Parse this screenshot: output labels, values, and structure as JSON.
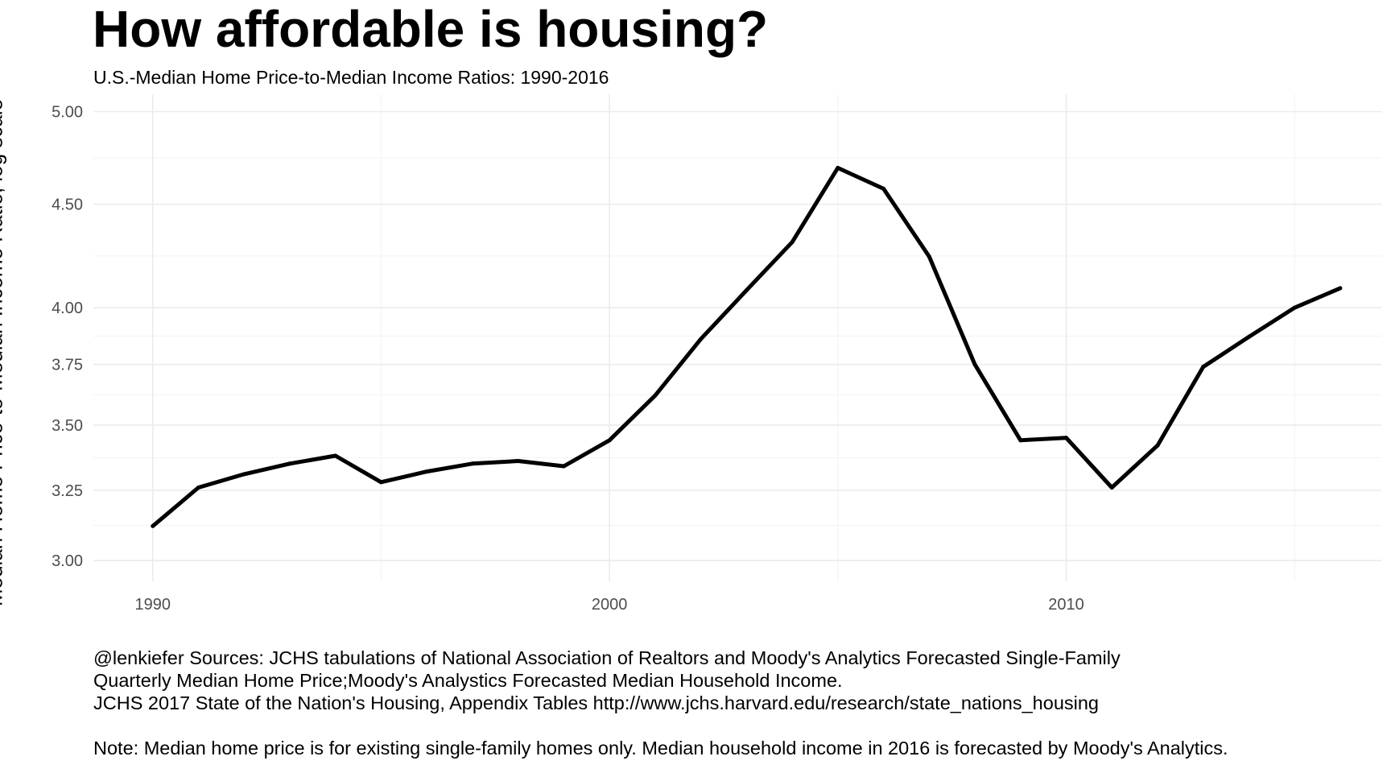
{
  "chart_data": {
    "type": "line",
    "title": "How affordable is housing?",
    "subtitle": "U.S.-Median Home Price-to-Median Income Ratios: 1990-2016",
    "xlabel": "",
    "ylabel": "Median Home Price-to-Median Income Ratio, log scale",
    "y_scale": "log",
    "grid": true,
    "xlim": [
      1988.7,
      2016.9
    ],
    "ylim": [
      2.93,
      5.1
    ],
    "x_ticks": [
      1990,
      2000,
      2010
    ],
    "x_tick_labels": [
      "1990",
      "2000",
      "2010"
    ],
    "y_ticks": [
      3.0,
      3.25,
      3.5,
      3.75,
      4.0,
      4.5,
      5.0
    ],
    "y_tick_labels": [
      "3.00",
      "3.25",
      "3.50",
      "3.75",
      "4.00",
      "4.50",
      "5.00"
    ],
    "line_color": "#000000",
    "series": [
      {
        "x": [
          1990,
          1991,
          1992,
          1993,
          1994,
          1995,
          1996,
          1997,
          1998,
          1999,
          2000,
          2001,
          2002,
          2003,
          2004,
          2005,
          2006,
          2007,
          2008,
          2009,
          2010,
          2011,
          2012,
          2013,
          2014,
          2015,
          2016
        ],
        "values": [
          3.12,
          3.26,
          3.31,
          3.35,
          3.38,
          3.28,
          3.32,
          3.35,
          3.36,
          3.34,
          3.44,
          3.62,
          3.86,
          4.08,
          4.31,
          4.69,
          4.58,
          4.24,
          3.75,
          3.44,
          3.45,
          3.26,
          3.42,
          3.74,
          3.87,
          4.0,
          4.09
        ]
      }
    ]
  },
  "caption": {
    "line1": "@lenkiefer Sources: JCHS tabulations of National Association of Realtors and Moody's Analytics Forecasted Single-Family",
    "line2": "Quarterly Median Home Price;Moody's Analystics Forecasted Median Household Income.",
    "line3": "JCHS 2017 State of the Nation's Housing, Appendix Tables http://www.jchs.harvard.edu/research/state_nations_housing",
    "note": "Note: Median home price is for existing single-family homes only. Median household income in 2016 is forecasted by Moody's Analytics."
  }
}
